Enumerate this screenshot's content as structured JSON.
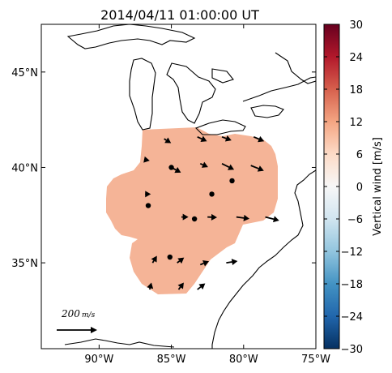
{
  "chart_data": {
    "type": "map",
    "title": "2014/04/11 01:00:00 UT",
    "x_ticks": [
      {
        "value": -90,
        "label": "90°W"
      },
      {
        "value": -85,
        "label": "85°W"
      },
      {
        "value": -80,
        "label": "80°W"
      },
      {
        "value": -75,
        "label": "75°W"
      }
    ],
    "y_ticks": [
      {
        "value": 35,
        "label": "35°N"
      },
      {
        "value": 40,
        "label": "40°N"
      },
      {
        "value": 45,
        "label": "45°N"
      }
    ],
    "xlim": [
      -94,
      -75
    ],
    "ylim": [
      30.5,
      47.5
    ],
    "colorbar": {
      "label": "Vertical wind [m/s]",
      "range": [
        -30,
        30
      ],
      "ticks": [
        "30",
        "24",
        "18",
        "12",
        "6",
        "0",
        "−6",
        "−12",
        "−18",
        "−24",
        "−30"
      ],
      "colormap": "RdBu_r"
    },
    "field_value": 8,
    "field_color": "#f5b497",
    "reference_vector": {
      "magnitude": 200,
      "label": "200 m/s"
    },
    "vectors": [
      {
        "lon": -85.5,
        "lat": 41.5,
        "u": 40,
        "v": -25
      },
      {
        "lon": -83.2,
        "lat": 41.6,
        "u": 55,
        "v": -25
      },
      {
        "lon": -81.5,
        "lat": 41.6,
        "u": 55,
        "v": -20
      },
      {
        "lon": -79.3,
        "lat": 41.6,
        "u": 60,
        "v": -25
      },
      {
        "lon": -86.8,
        "lat": 40.4,
        "u": 25,
        "v": -5
      },
      {
        "lon": -85.0,
        "lat": 40.0,
        "u": 55,
        "v": -30
      },
      {
        "lon": -83.0,
        "lat": 40.2,
        "u": 45,
        "v": -20
      },
      {
        "lon": -81.5,
        "lat": 40.2,
        "u": 70,
        "v": -35
      },
      {
        "lon": -79.5,
        "lat": 40.1,
        "u": 75,
        "v": -30
      },
      {
        "lon": -86.6,
        "lat": 38.6,
        "u": 15,
        "v": 0
      },
      {
        "lon": -84.3,
        "lat": 37.4,
        "u": 40,
        "v": 0
      },
      {
        "lon": -82.5,
        "lat": 37.4,
        "u": 55,
        "v": -2
      },
      {
        "lon": -80.5,
        "lat": 37.4,
        "u": 75,
        "v": -10
      },
      {
        "lon": -78.5,
        "lat": 37.4,
        "u": 80,
        "v": -20
      },
      {
        "lon": -86.3,
        "lat": 35.0,
        "u": 25,
        "v": 40
      },
      {
        "lon": -84.6,
        "lat": 35.0,
        "u": 40,
        "v": 30
      },
      {
        "lon": -83.0,
        "lat": 34.9,
        "u": 50,
        "v": 20
      },
      {
        "lon": -81.2,
        "lat": 35.0,
        "u": 65,
        "v": 10
      },
      {
        "lon": -86.5,
        "lat": 33.6,
        "u": 10,
        "v": 40
      },
      {
        "lon": -84.5,
        "lat": 33.6,
        "u": 30,
        "v": 40
      },
      {
        "lon": -83.2,
        "lat": 33.6,
        "u": 45,
        "v": 35
      }
    ],
    "stations": [
      {
        "lon": -85.0,
        "lat": 40.0
      },
      {
        "lon": -80.8,
        "lat": 39.3
      },
      {
        "lon": -82.2,
        "lat": 38.6
      },
      {
        "lon": -86.6,
        "lat": 38.0
      },
      {
        "lon": -83.4,
        "lat": 37.3
      },
      {
        "lon": -85.1,
        "lat": 35.3
      }
    ]
  }
}
